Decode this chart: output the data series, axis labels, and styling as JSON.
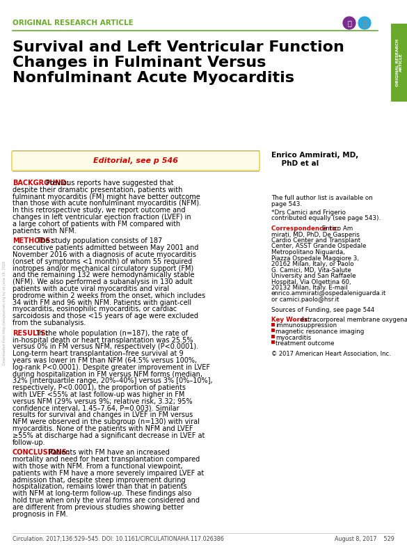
{
  "title_line1": "Survival and Left Ventricular Function",
  "title_line2": "Changes in Fulminant Versus",
  "title_line3": "Nonfulminant Acute Myocarditis",
  "section_label": "ORIGINAL RESEARCH ARTICLE",
  "section_label_color": "#6aaa2a",
  "author_line1": "Enrico Ammirati, MD,",
  "author_line2": "    PhD et al",
  "editorial_text": "Editorial, see p 546",
  "background_label": "BACKGROUND:",
  "background_text": "Previous reports have suggested that despite their dramatic presentation, patients with fulminant myocarditis (FM) might have better outcome than those with acute nonfulminant myocarditis (NFM). In this retrospective study, we report outcome and changes in left ventricular ejection fraction (LVEF) in a large cohort of patients with FM compared with patients with NFM.",
  "methods_label": "METHODS:",
  "methods_text": "The study population consists of 187 consecutive patients admitted between May 2001 and November 2016 with a diagnosis of acute myocarditis (onset of symptoms <1 month) of whom 55 required inotropes and/or mechanical circulatory support (FM) and the remaining 132 were hemodynamically stable (NFM). We also performed a subanalysis in 130 adult patients with acute viral myocarditis and viral prodrome within 2 weeks from the onset, which includes 34 with FM and 96 with NFM. Patients with giant-cell myocarditis, eosinophilic myocarditis, or cardiac sarcoidosis and those <15 years of age were excluded from the subanalysis.",
  "results_label": "RESULTS:",
  "results_text": "In the whole population (n=187), the rate of in-hospital death or heart transplantation was 25.5% versus 0% in FM versus NFM, respectively (P<0.0001). Long-term heart transplantation–free survival at 9 years was lower in FM than NFM (64.5% versus 100%, log-rank P<0.0001). Despite greater improvement in LVEF during hospitalization in FM versus NFM forms (median, 32% [interquartile range, 20%–40%] versus 3% [0%–10%], respectively, P<0.0001), the proportion of patients with LVEF <55% at last follow-up was higher in FM versus NFM (29% versus 9%; relative risk, 3.32; 95% confidence interval, 1.45–7.64, P=0.003). Similar results for survival and changes in LVEF in FM versus NFM were observed in the subgroup (n=130) with viral myocarditis. None of the patients with NFM and LVEF ≥55% at discharge had a significant decrease in LVEF at follow-up.",
  "conclusions_label": "CONCLUSIONS:",
  "conclusions_text": "Patients with FM have an increased mortality and need for heart transplantation compared with those with NFM. From a functional viewpoint, patients with FM have a more severely impaired LVEF at admission that, despite steep improvement during hospitalization, remains lower than that in patients with NFM at long-term follow-up. These findings also hold true when only the viral forms are considered and are different from previous studies showing better prognosis in FM.",
  "right_col_fullauthor": "The full author list is available on\npage 543.",
  "right_col_contrib": "*Drs Camici and Frigerio\ncontributed equally (see page 543).",
  "corr_label": "Correspondence to:",
  "corr_text": "Enrico Ammirati, MD, PhD, De Gasperis Cardio Center and Transplant Center, ASST Grande Ospedale Metropolitano Niguarda, Piazza Ospedale Maggiore 3, 20162 Milan, Italy, or Paolo G. Camici, MD, Vita-Salute University and San Raffaele Hospital, Via Olgettina 60, 20132 Milan, Italy. E-mail enrico.ammirati@ospedaleniguarda.it or camici.paolo@hsr.it",
  "right_col_funding": "Sources of Funding, see page 544",
  "keywords_label": "Key Words:",
  "kw1": "extracorporeal membrane oxygenation",
  "kw2": "immunosuppression",
  "kw3": "magnetic resonance imaging",
  "kw4": "myocarditis",
  "kw5": "treatment outcome",
  "copyright_text": "© 2017 American Heart Association, Inc.",
  "footer_text": "Circulation. 2017;136:529–545. DOI: 10.1161/CIRCULATIONAHA.117.026386",
  "footer_right": "August 8, 2017    529",
  "sidebar_text": "ORIGINAL RESEARCH\nARTICLE",
  "sidebar_color": "#6aaa2a",
  "label_color": "#cc0000",
  "background_color": "#ffffff",
  "divider_color": "#6aaa2a"
}
